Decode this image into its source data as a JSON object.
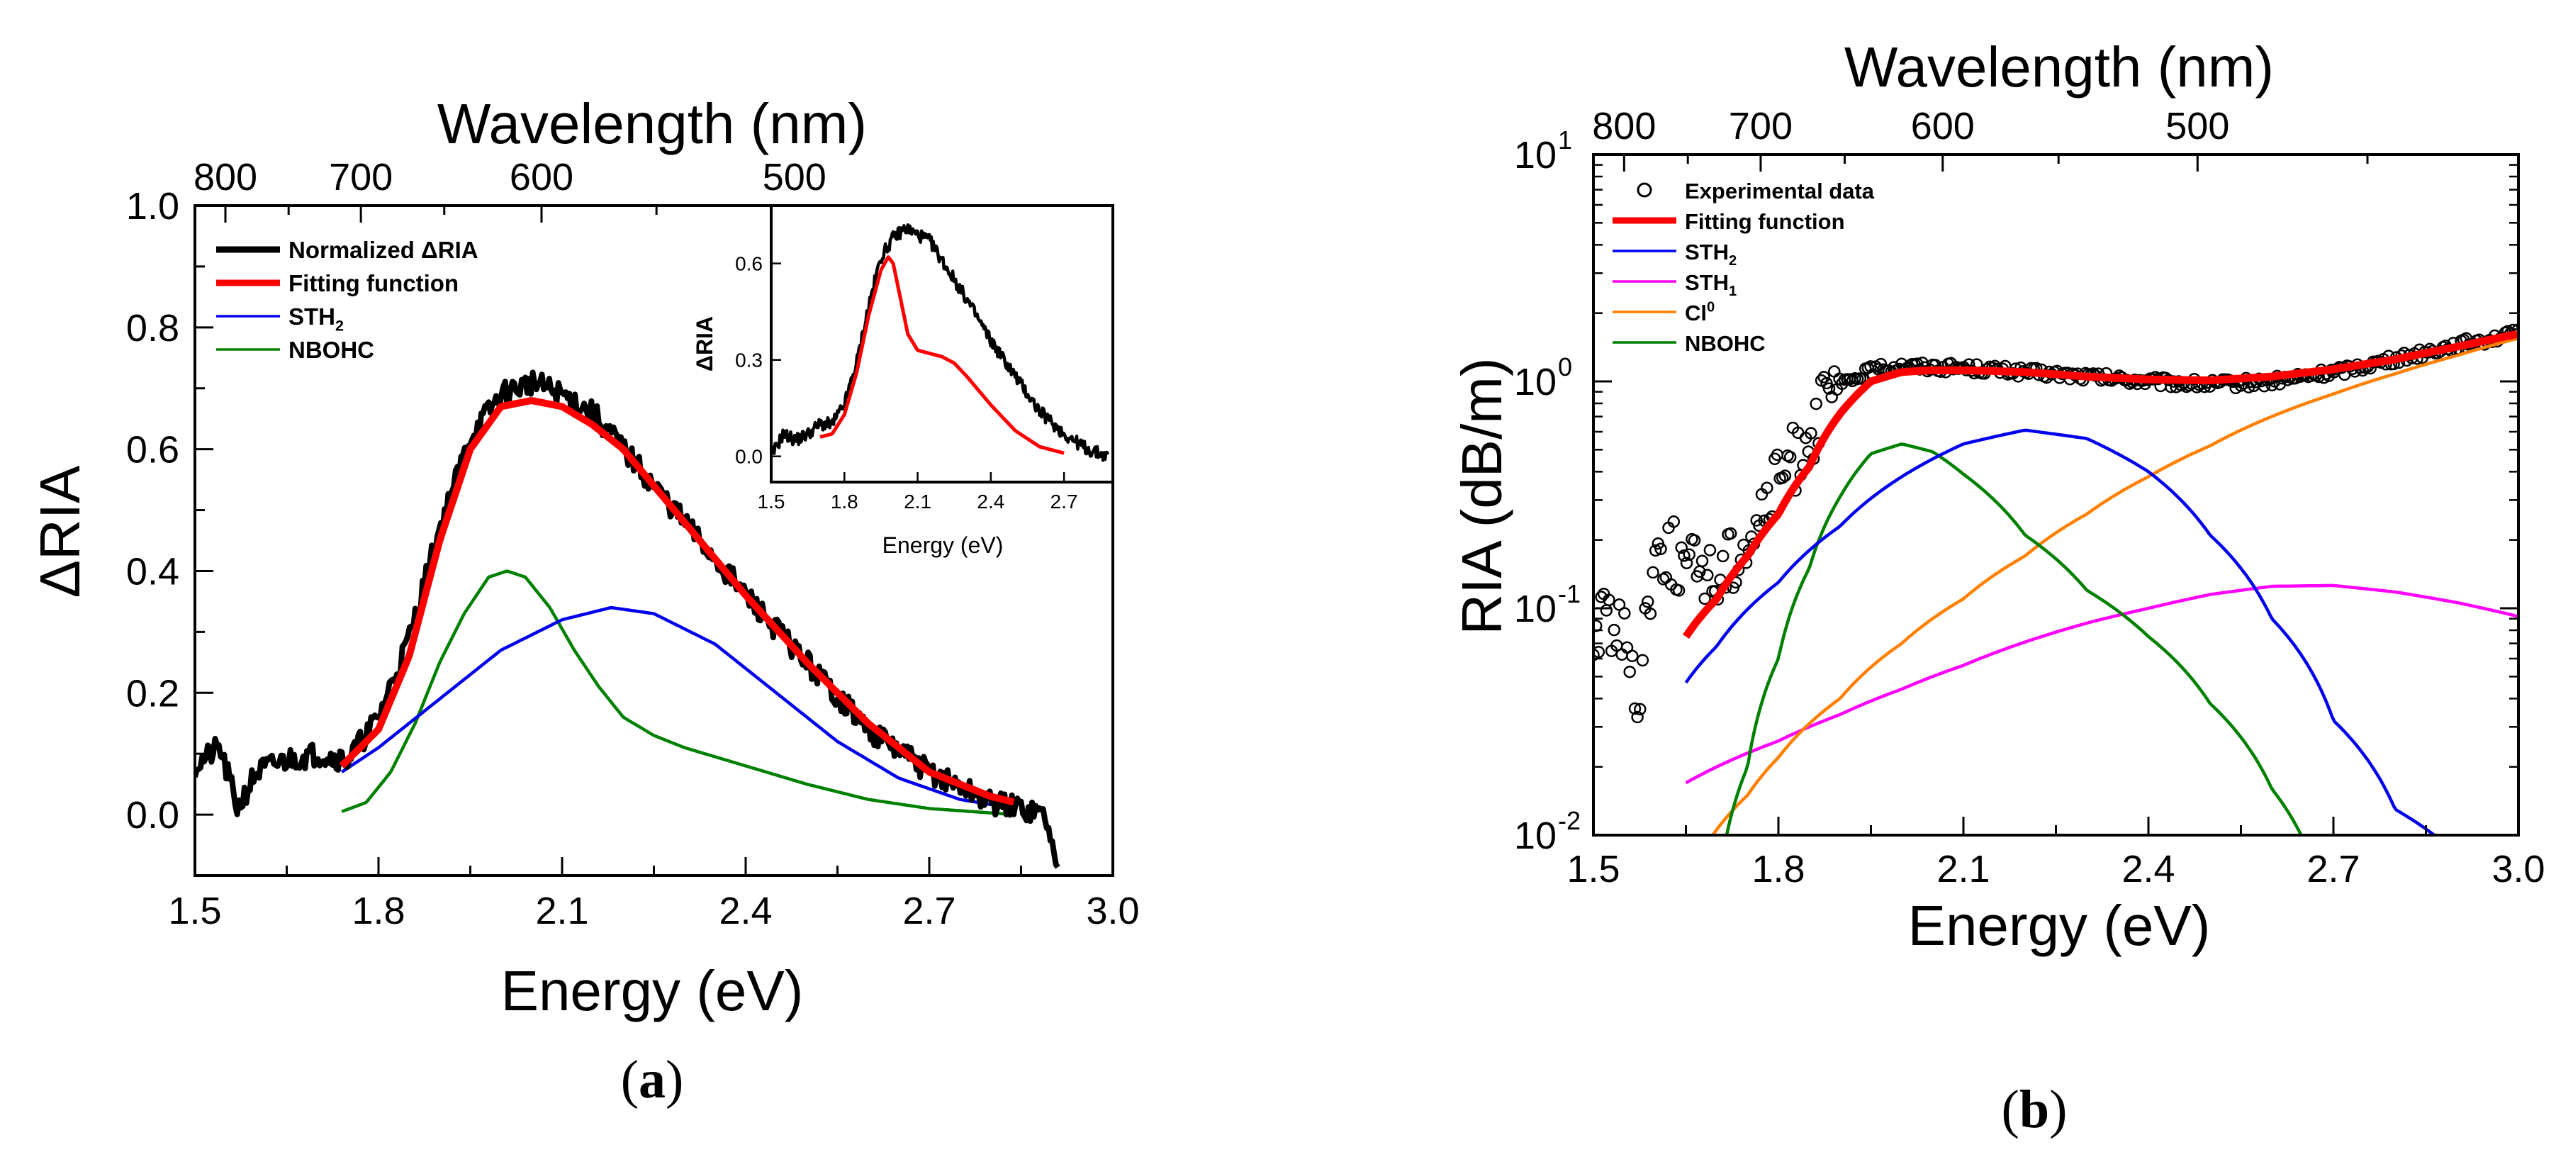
{
  "colors": {
    "data": "#000000",
    "fit": "#ff0000",
    "sth2": "#0000ee",
    "sth1": "#ff00ff",
    "cl0": "#ff8000",
    "nbohc": "#008000",
    "axis": "#000000"
  },
  "panels": {
    "a": {
      "label_prefix": "(",
      "label_letter": "a",
      "label_suffix": ")"
    },
    "b": {
      "label_prefix": "(",
      "label_letter": "b",
      "label_suffix": ")"
    }
  },
  "chart_data": [
    {
      "id": "panel-a",
      "type": "line",
      "xlabel": "Energy (eV)",
      "ylabel": "ΔRIA",
      "top_axis_label": "Wavelength (nm)",
      "xlim": [
        1.5,
        3.0
      ],
      "ylim": [
        -0.1,
        1.0
      ],
      "xticks": [
        1.5,
        1.8,
        2.1,
        2.4,
        2.7,
        3.0
      ],
      "xtick_labels": [
        "1.5",
        "1.8",
        "2.1",
        "2.4",
        "2.7",
        "3.0"
      ],
      "yticks": [
        0.0,
        0.2,
        0.4,
        0.6,
        0.8,
        1.0
      ],
      "ytick_labels": [
        "0.0",
        "0.2",
        "0.4",
        "0.6",
        "0.8",
        "1.0"
      ],
      "top_ticks_nm": [
        800,
        700,
        600,
        500
      ],
      "top_tick_labels": [
        "800",
        "700",
        "600",
        "500"
      ],
      "legend": [
        {
          "label": "Normalized ΔRIA",
          "series": "data",
          "style": "thick"
        },
        {
          "label": "Fitting function",
          "series": "fit",
          "style": "thick"
        },
        {
          "label": "STH",
          "sub": "2",
          "series": "sth2",
          "style": "thin"
        },
        {
          "label": "NBOHC",
          "series": "nbohc",
          "style": "thin"
        }
      ],
      "series": [
        {
          "name": "Normalized ΔRIA",
          "key": "data",
          "noise": 0.02,
          "x": [
            1.5,
            1.54,
            1.57,
            1.6,
            1.65,
            1.7,
            1.75,
            1.8,
            1.85,
            1.9,
            1.95,
            2.0,
            2.05,
            2.1,
            2.15,
            2.2,
            2.3,
            2.4,
            2.5,
            2.6,
            2.7,
            2.8,
            2.85,
            2.89,
            2.91
          ],
          "y": [
            0.08,
            0.11,
            0.01,
            0.07,
            0.09,
            0.1,
            0.09,
            0.16,
            0.29,
            0.47,
            0.62,
            0.69,
            0.71,
            0.69,
            0.66,
            0.6,
            0.48,
            0.36,
            0.25,
            0.14,
            0.07,
            0.02,
            0.01,
            0.0,
            -0.1
          ]
        },
        {
          "name": "Fitting function",
          "key": "fit",
          "x": [
            1.74,
            1.8,
            1.85,
            1.9,
            1.95,
            2.0,
            2.05,
            2.1,
            2.15,
            2.2,
            2.3,
            2.4,
            2.5,
            2.6,
            2.7,
            2.8,
            2.84
          ],
          "y": [
            0.08,
            0.14,
            0.26,
            0.45,
            0.6,
            0.67,
            0.68,
            0.67,
            0.64,
            0.6,
            0.48,
            0.36,
            0.25,
            0.15,
            0.07,
            0.03,
            0.02
          ]
        },
        {
          "name": "STH2",
          "key": "sth2",
          "x": [
            1.74,
            1.8,
            1.9,
            2.0,
            2.1,
            2.18,
            2.25,
            2.35,
            2.45,
            2.55,
            2.65,
            2.75,
            2.84
          ],
          "y": [
            0.07,
            0.11,
            0.19,
            0.27,
            0.32,
            0.34,
            0.33,
            0.28,
            0.2,
            0.12,
            0.06,
            0.025,
            0.01
          ]
        },
        {
          "name": "NBOHC",
          "key": "nbohc",
          "x": [
            1.74,
            1.78,
            1.82,
            1.86,
            1.9,
            1.94,
            1.98,
            2.01,
            2.04,
            2.08,
            2.12,
            2.16,
            2.2,
            2.25,
            2.3,
            2.4,
            2.5,
            2.6,
            2.7,
            2.84
          ],
          "y": [
            0.005,
            0.02,
            0.07,
            0.15,
            0.25,
            0.33,
            0.39,
            0.4,
            0.39,
            0.34,
            0.27,
            0.21,
            0.16,
            0.13,
            0.11,
            0.08,
            0.05,
            0.025,
            0.01,
            0.0
          ]
        }
      ],
      "inset": {
        "xlabel": "Energy (eV)",
        "ylabel": "ΔRIA",
        "xlim": [
          1.5,
          2.9
        ],
        "ylim": [
          -0.08,
          0.78
        ],
        "xticks": [
          1.5,
          1.8,
          2.1,
          2.4,
          2.7
        ],
        "xtick_labels": [
          "1.5",
          "1.8",
          "2.1",
          "2.4",
          "2.7"
        ],
        "yticks": [
          0.0,
          0.3,
          0.6
        ],
        "ytick_labels": [
          "0.0",
          "0.3",
          "0.6"
        ],
        "series": [
          {
            "name": "ΔRIA",
            "key": "data",
            "noise": 0.02,
            "x": [
              1.5,
              1.55,
              1.6,
              1.65,
              1.7,
              1.75,
              1.8,
              1.85,
              1.9,
              1.95,
              2.0,
              2.05,
              2.1,
              2.15,
              2.2,
              2.3,
              2.4,
              2.5,
              2.6,
              2.7,
              2.8,
              2.88
            ],
            "y": [
              0.0,
              0.07,
              0.05,
              0.07,
              0.1,
              0.1,
              0.16,
              0.29,
              0.47,
              0.62,
              0.68,
              0.71,
              0.69,
              0.67,
              0.61,
              0.49,
              0.36,
              0.25,
              0.14,
              0.07,
              0.02,
              0.0
            ]
          },
          {
            "name": "Fit",
            "key": "fit",
            "x": [
              1.7,
              1.75,
              1.8,
              1.85,
              1.9,
              1.95,
              1.98,
              2.0,
              2.03,
              2.06,
              2.1,
              2.15,
              2.2,
              2.25,
              2.3,
              2.4,
              2.5,
              2.6,
              2.7
            ],
            "y": [
              0.06,
              0.07,
              0.13,
              0.26,
              0.44,
              0.58,
              0.62,
              0.6,
              0.49,
              0.38,
              0.33,
              0.32,
              0.31,
              0.29,
              0.25,
              0.16,
              0.08,
              0.03,
              0.01
            ]
          }
        ]
      }
    },
    {
      "id": "panel-b",
      "type": "line",
      "yscale": "log",
      "xlabel": "Energy (eV)",
      "ylabel": "RIA (dB/m)",
      "top_axis_label": "Wavelength (nm)",
      "xlim": [
        1.5,
        3.0
      ],
      "ylim": [
        0.01,
        10
      ],
      "xticks": [
        1.5,
        1.8,
        2.1,
        2.4,
        2.7,
        3.0
      ],
      "xtick_labels": [
        "1.5",
        "1.8",
        "2.1",
        "2.4",
        "2.7",
        "3.0"
      ],
      "yticks": [
        0.01,
        0.1,
        1,
        10
      ],
      "ytick_labels": [
        {
          "base": "10",
          "exp": "-2"
        },
        {
          "base": "10",
          "exp": "-1"
        },
        {
          "base": "10",
          "exp": "0"
        },
        {
          "base": "10",
          "exp": "1"
        }
      ],
      "top_ticks_nm": [
        800,
        700,
        600,
        500
      ],
      "top_tick_labels": [
        "800",
        "700",
        "600",
        "500"
      ],
      "legend": [
        {
          "label": "Experimental data",
          "series": "data",
          "style": "circle"
        },
        {
          "label": "Fitting function",
          "series": "fit",
          "style": "thick"
        },
        {
          "label": "STH",
          "sub": "2",
          "series": "sth2",
          "style": "thin"
        },
        {
          "label": "STH",
          "sub": "1",
          "series": "sth1",
          "style": "thin"
        },
        {
          "label": "Cl",
          "sup": "0",
          "series": "cl0",
          "style": "thin"
        },
        {
          "label": "NBOHC",
          "series": "nbohc",
          "style": "thin"
        }
      ],
      "series": [
        {
          "name": "Experimental data",
          "key": "data",
          "marker": "circle",
          "x": [
            1.5,
            1.52,
            1.55,
            1.57,
            1.59,
            1.61,
            1.63,
            1.65,
            1.68,
            1.7,
            1.72,
            1.75,
            1.78,
            1.8,
            1.83,
            1.86,
            1.9,
            1.95,
            2.0,
            2.1,
            2.2,
            2.3,
            2.4,
            2.5,
            2.6,
            2.7,
            2.8,
            2.9,
            3.0
          ],
          "y": [
            0.07,
            0.1,
            0.08,
            0.03,
            0.12,
            0.2,
            0.18,
            0.15,
            0.16,
            0.13,
            0.17,
            0.2,
            0.28,
            0.37,
            0.5,
            0.7,
            0.95,
            1.12,
            1.17,
            1.15,
            1.1,
            1.05,
            1.0,
            0.97,
            1.0,
            1.1,
            1.25,
            1.45,
            1.62
          ]
        },
        {
          "name": "Fitting function",
          "key": "fit",
          "x": [
            1.65,
            1.7,
            1.75,
            1.8,
            1.85,
            1.9,
            1.95,
            2.0,
            2.05,
            2.1,
            2.2,
            2.3,
            2.4,
            2.5,
            2.6,
            2.7,
            2.8,
            2.9,
            3.0
          ],
          "y": [
            0.075,
            0.11,
            0.17,
            0.26,
            0.42,
            0.72,
            1.0,
            1.1,
            1.12,
            1.12,
            1.1,
            1.05,
            1.02,
            1.01,
            1.05,
            1.13,
            1.25,
            1.42,
            1.62
          ]
        },
        {
          "name": "STH2",
          "key": "sth2",
          "x": [
            1.65,
            1.7,
            1.8,
            1.9,
            2.0,
            2.1,
            2.2,
            2.3,
            2.4,
            2.5,
            2.6,
            2.7,
            2.8,
            2.87
          ],
          "y": [
            0.047,
            0.068,
            0.13,
            0.23,
            0.38,
            0.53,
            0.61,
            0.56,
            0.4,
            0.21,
            0.09,
            0.032,
            0.013,
            0.0097
          ]
        },
        {
          "name": "STH1",
          "key": "sth1",
          "x": [
            1.65,
            1.8,
            1.9,
            2.0,
            2.1,
            2.2,
            2.3,
            2.4,
            2.5,
            2.6,
            2.7,
            2.8,
            2.9,
            3.0
          ],
          "y": [
            0.017,
            0.026,
            0.034,
            0.044,
            0.056,
            0.071,
            0.086,
            0.1,
            0.115,
            0.125,
            0.126,
            0.118,
            0.106,
            0.092
          ]
        },
        {
          "name": "Cl0",
          "key": "cl0",
          "x": [
            1.69,
            1.75,
            1.8,
            1.9,
            2.0,
            2.1,
            2.2,
            2.3,
            2.4,
            2.5,
            2.6,
            2.7,
            2.8,
            2.9,
            3.0
          ],
          "y": [
            0.0097,
            0.015,
            0.022,
            0.04,
            0.07,
            0.11,
            0.17,
            0.26,
            0.38,
            0.52,
            0.7,
            0.88,
            1.08,
            1.3,
            1.55
          ]
        },
        {
          "name": "NBOHC",
          "key": "nbohc",
          "x": [
            1.715,
            1.75,
            1.8,
            1.85,
            1.9,
            1.95,
            2.0,
            2.05,
            2.1,
            2.2,
            2.3,
            2.4,
            2.5,
            2.6,
            2.65
          ],
          "y": [
            0.0097,
            0.02,
            0.06,
            0.15,
            0.31,
            0.48,
            0.53,
            0.49,
            0.39,
            0.21,
            0.12,
            0.075,
            0.038,
            0.016,
            0.0097
          ]
        }
      ]
    }
  ]
}
